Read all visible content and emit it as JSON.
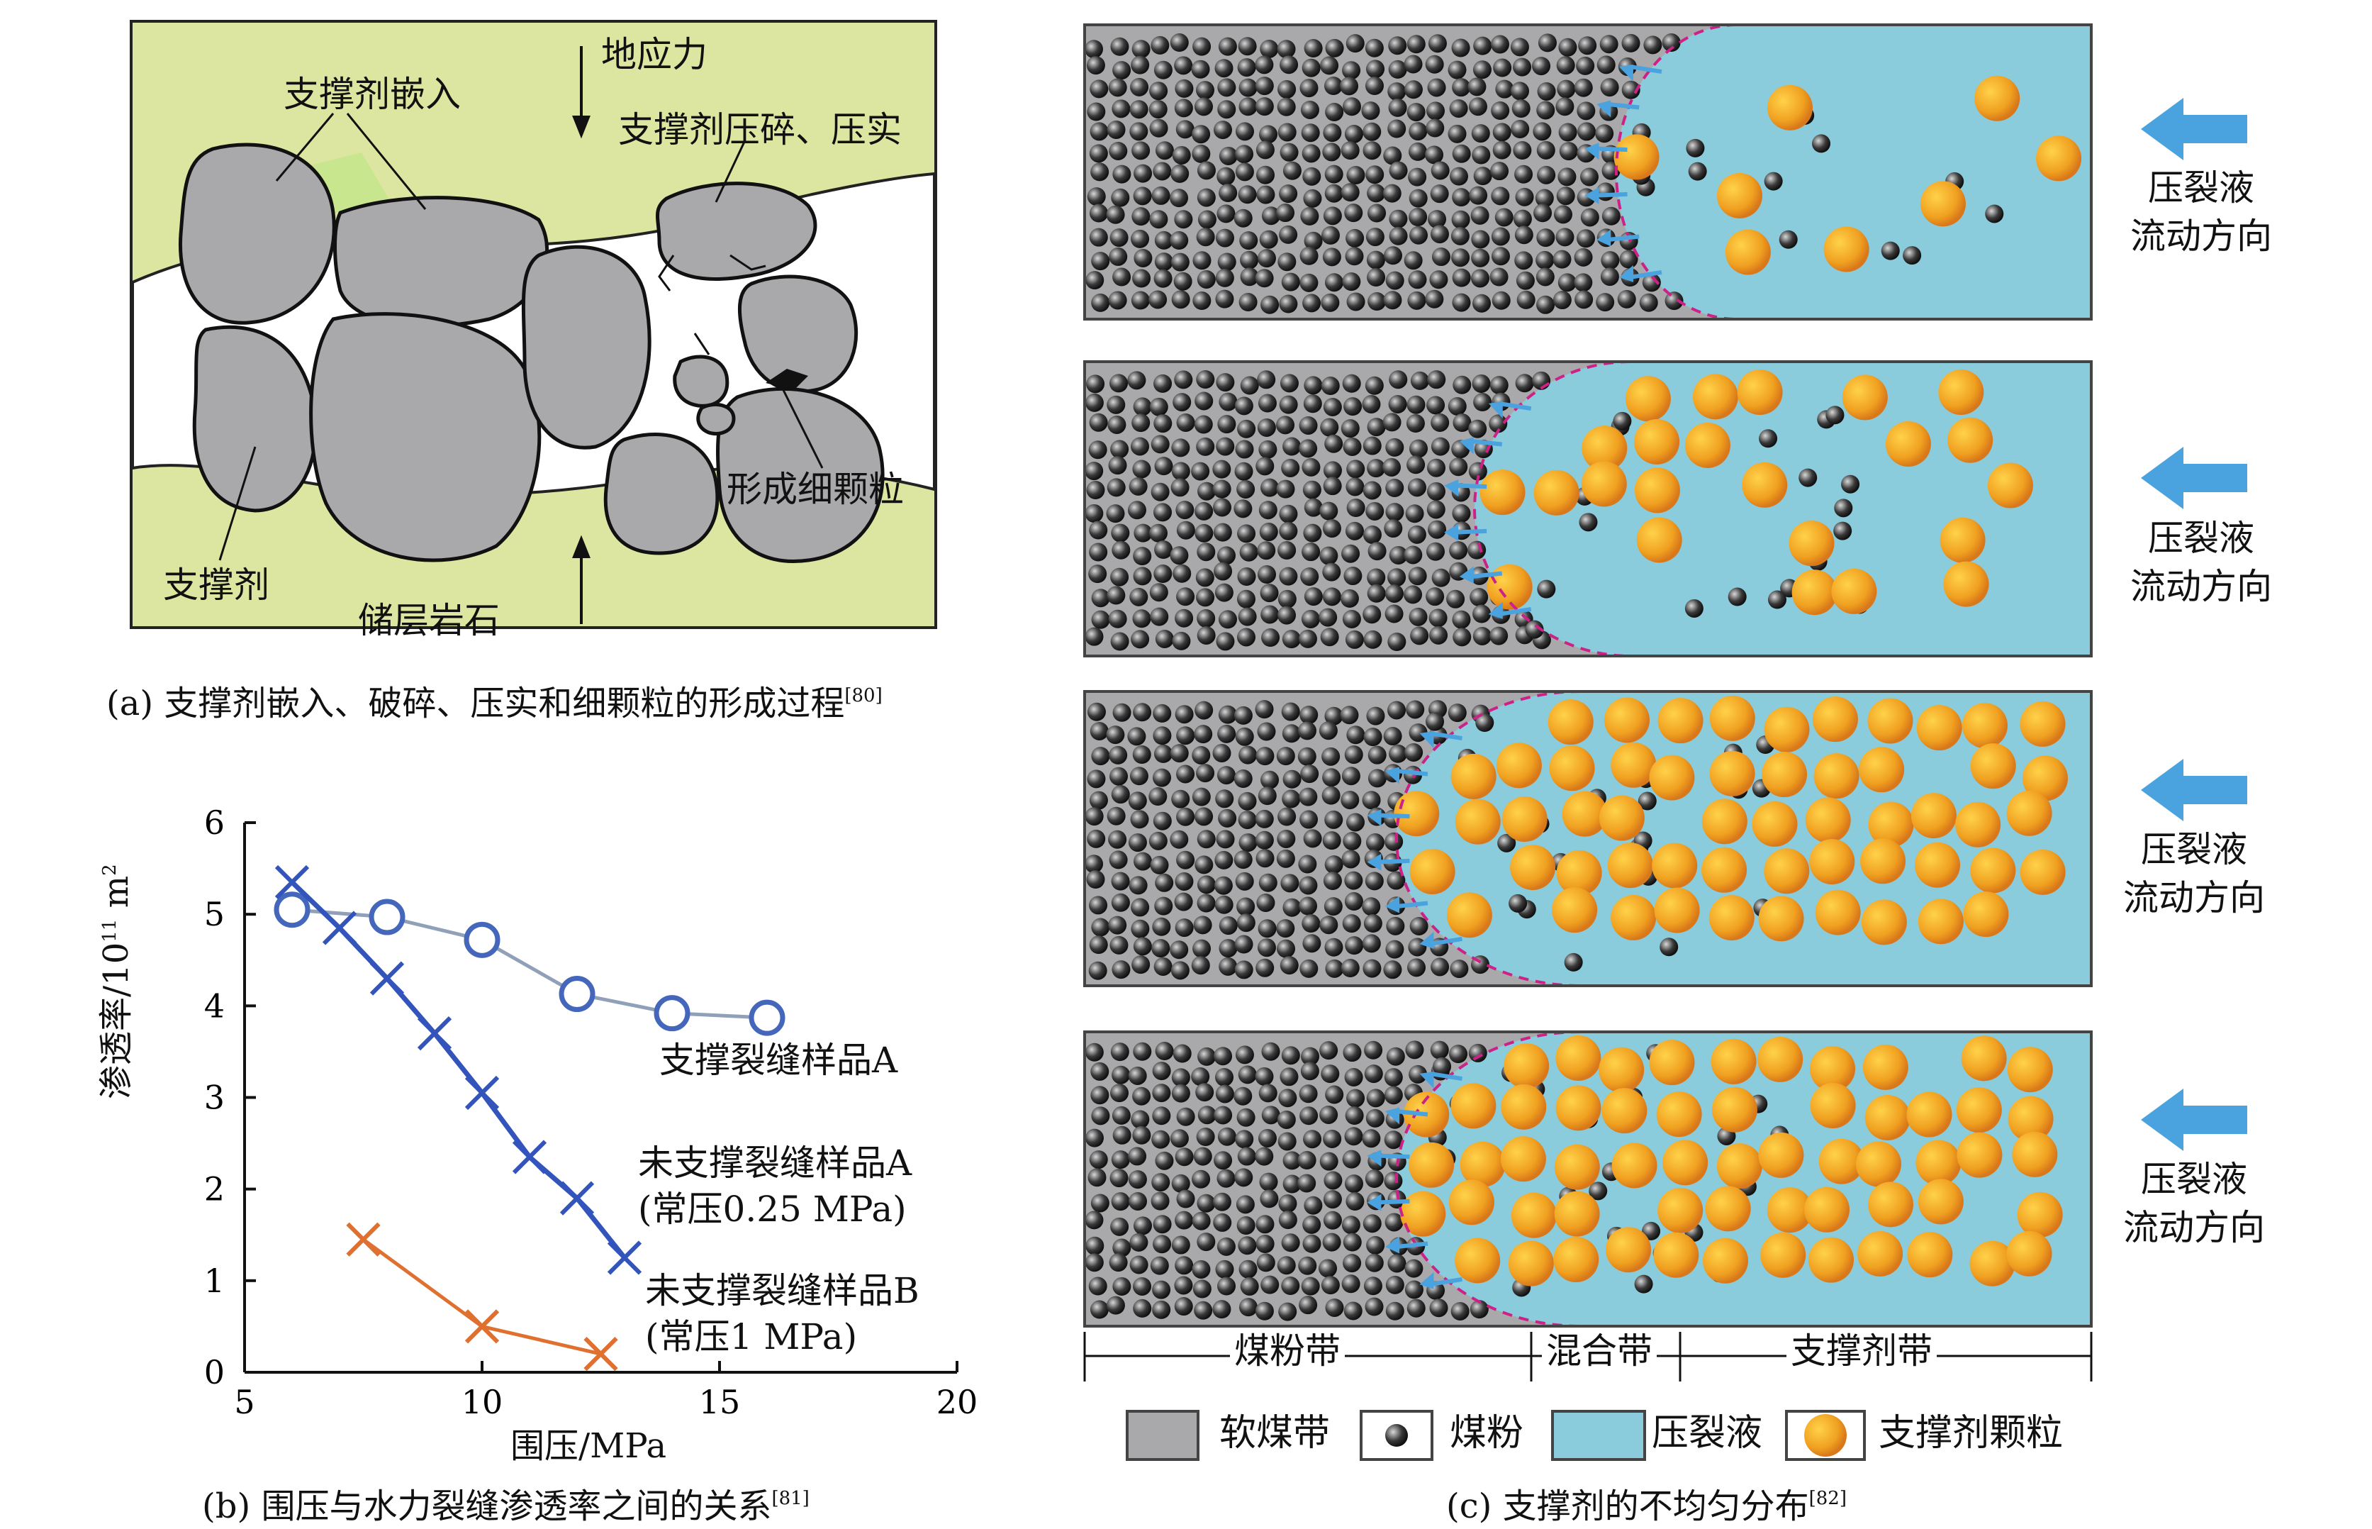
{
  "panel_a": {
    "labels": {
      "embed": "支撑剂嵌入",
      "stress": "地应力",
      "crush": "支撑剂压碎、压实",
      "fines": "形成细颗粒",
      "proppant": "支撑剂",
      "rock": "储层岩石"
    },
    "caption": {
      "text": "(a) 支撑剂嵌入、破碎、压实和细颗粒的形成过程",
      "ref": "[80]"
    }
  },
  "panel_b": {
    "caption": {
      "text": "(b) 围压与水力裂缝渗透率之间的关系",
      "ref": "[81]"
    },
    "ylabel_main": "渗透率/10",
    "ylabel_exp": "11",
    "ylabel_unit": " m",
    "ylabel_sq": "2",
    "xlabel": "围压/MPa",
    "series_labels": {
      "a_propped": "支撑裂缝样品A",
      "a_unpropped": "未支撑裂缝样品A",
      "a_unpropped_note": "(常压0.25 MPa)",
      "b_unpropped": "未支撑裂缝样品B",
      "b_unpropped_note": "(常压1 MPa)"
    }
  },
  "chart_data": {
    "type": "line",
    "title": "围压与水力裂缝渗透率之间的关系",
    "xlabel": "围压/MPa",
    "ylabel": "渗透率/10^11 m^2",
    "xlim": [
      5,
      20
    ],
    "ylim": [
      0,
      6
    ],
    "xticks": [
      5,
      10,
      15,
      20
    ],
    "yticks": [
      0,
      1,
      2,
      3,
      4,
      5,
      6
    ],
    "series": [
      {
        "name": "支撑裂缝样品A",
        "marker": "circle",
        "color": "#4466bb",
        "line_color": "#8fa0b8",
        "x": [
          6,
          8,
          10,
          12,
          14,
          16
        ],
        "y": [
          5.05,
          4.97,
          4.72,
          4.13,
          3.92,
          3.87
        ]
      },
      {
        "name": "未支撑裂缝样品A (常压0.25 MPa)",
        "marker": "x",
        "color": "#3355bb",
        "line_color": "#3355bb",
        "x": [
          6,
          7,
          8,
          9,
          10,
          11,
          12,
          13
        ],
        "y": [
          5.35,
          4.85,
          4.3,
          3.7,
          3.05,
          2.35,
          1.9,
          1.25
        ]
      },
      {
        "name": "未支撑裂缝样品B (常压1 MPa)",
        "marker": "x",
        "color": "#e07030",
        "line_color": "#e07030",
        "x": [
          7.5,
          10,
          12.5
        ],
        "y": [
          1.45,
          0.5,
          0.2
        ]
      }
    ]
  },
  "panel_c": {
    "flow_label_line1": "压裂液",
    "flow_label_line2": "流动方向",
    "zones": {
      "coal": "煤粉带",
      "mixed": "混合带",
      "proppant": "支撑剂带"
    },
    "legend": {
      "soft_coal": "软煤带",
      "coal_fines": "煤粉",
      "frac_fluid": "压裂液",
      "proppant_particle": "支撑剂颗粒"
    },
    "caption": {
      "text": "(c) 支撑剂的不均匀分布",
      "ref": "[82]"
    },
    "colors": {
      "soft_coal": "#a9a9ab",
      "fluid": "#8acbdc",
      "proppant": "#f0a020",
      "boundary": "#cc2288",
      "arrow": "#4aa3df"
    }
  }
}
